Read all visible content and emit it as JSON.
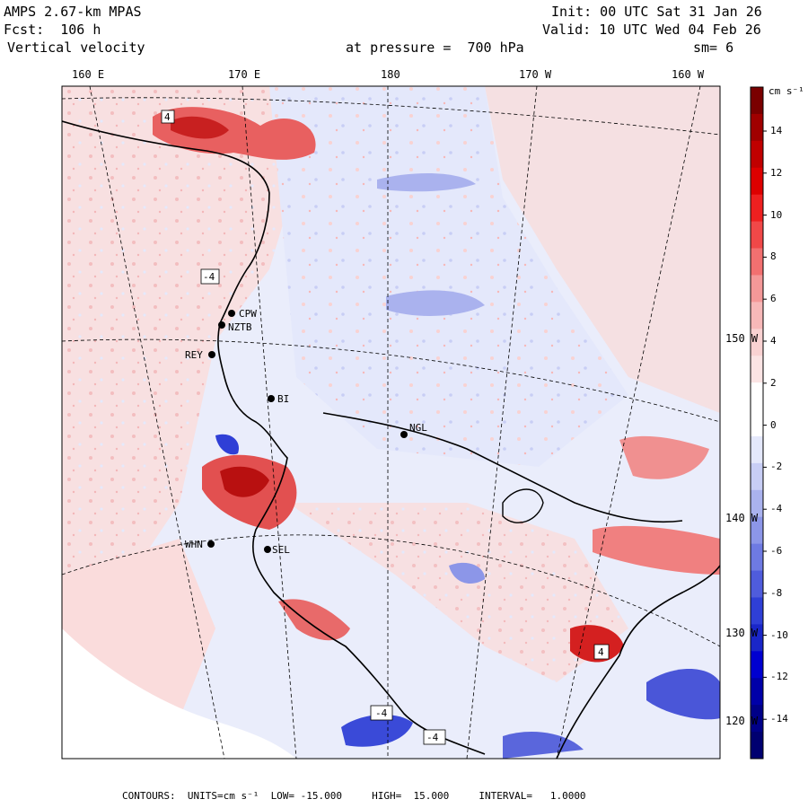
{
  "header": {
    "model": "AMPS 2.67-km MPAS",
    "forecast": "Fcst:  106 h",
    "field": "Vertical velocity",
    "init": "Init: 00 UTC Sat 31 Jan 26",
    "valid": "Valid: 10 UTC Wed 04 Feb 26",
    "pressure": "at pressure =  700 hPa",
    "smoothing": "sm= 6"
  },
  "longitude_labels": [
    "160 E",
    "170 E",
    "180",
    "170 W",
    "160 W"
  ],
  "latitude_labels": [
    "150 W",
    "140 W",
    "130 W",
    "120 W"
  ],
  "colorbar": {
    "units": "cm s⁻¹",
    "labels": [
      "14",
      "12",
      "10",
      "8",
      "6",
      "4",
      "2",
      "0",
      "-2",
      "-4",
      "-6",
      "-8",
      "-10",
      "-12",
      "-14"
    ],
    "colors": [
      "#7a0000",
      "#a00000",
      "#c00000",
      "#dd0000",
      "#ee2020",
      "#f04848",
      "#f27070",
      "#f49898",
      "#f7b8b8",
      "#f9d2d2",
      "#fbe4e4",
      "#ffffff",
      "#ffffff",
      "#e4e8fb",
      "#c8cef5",
      "#aab2ee",
      "#8c96e8",
      "#6e7ae2",
      "#4f5cdc",
      "#2f3fd6",
      "#1a26c8",
      "#0000d0",
      "#0000a8",
      "#000088",
      "#000070"
    ]
  },
  "stations": [
    {
      "id": "CPW"
    },
    {
      "id": "NZTB"
    },
    {
      "id": "REY"
    },
    {
      "id": "BI"
    },
    {
      "id": "NGL"
    },
    {
      "id": "WHN"
    },
    {
      "id": "SEL"
    }
  ],
  "contour_labels": [
    "4",
    "-4",
    "-4",
    "4",
    "-4"
  ],
  "footer": {
    "text": "CONTOURS:  UNITS=cm s⁻¹  LOW= -15.000     HIGH=  15.000     INTERVAL=   1.0000"
  }
}
